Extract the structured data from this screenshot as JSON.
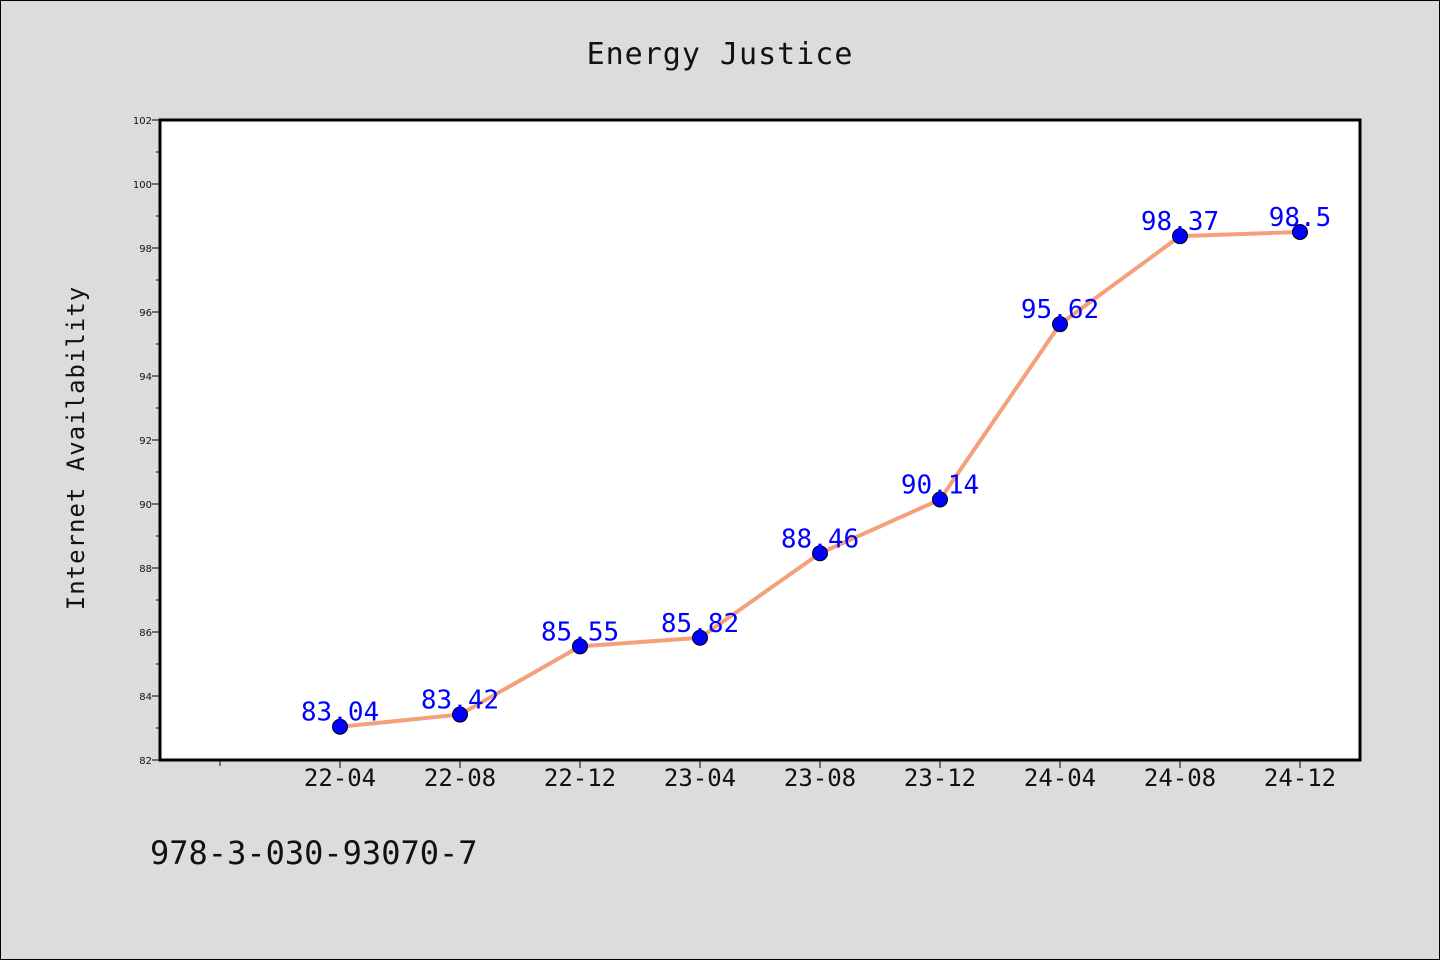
{
  "chart_data": {
    "type": "line",
    "title": "Energy Justice",
    "xlabel": "",
    "ylabel": "Internet Availability",
    "categories": [
      "22-04",
      "22-08",
      "22-12",
      "23-04",
      "23-08",
      "23-12",
      "24-04",
      "24-08",
      "24-12"
    ],
    "values": [
      83.04,
      83.42,
      85.55,
      85.82,
      88.46,
      90.14,
      95.62,
      98.37,
      98.5
    ],
    "data_labels": [
      "83.04",
      "83.42",
      "85.55",
      "85.82",
      "88.46",
      "90.14",
      "95.62",
      "98.37",
      "98.5"
    ],
    "ylim": [
      82,
      102
    ],
    "yticks": [
      "82",
      "84",
      "86",
      "88",
      "90",
      "92",
      "94",
      "96",
      "98",
      "100",
      "102"
    ],
    "grid": false,
    "line_color": "#f4a07a",
    "marker_color": "#0000ff",
    "label_color": "#0000ff"
  },
  "footer": {
    "isbn": "978-3-030-93070-7"
  }
}
